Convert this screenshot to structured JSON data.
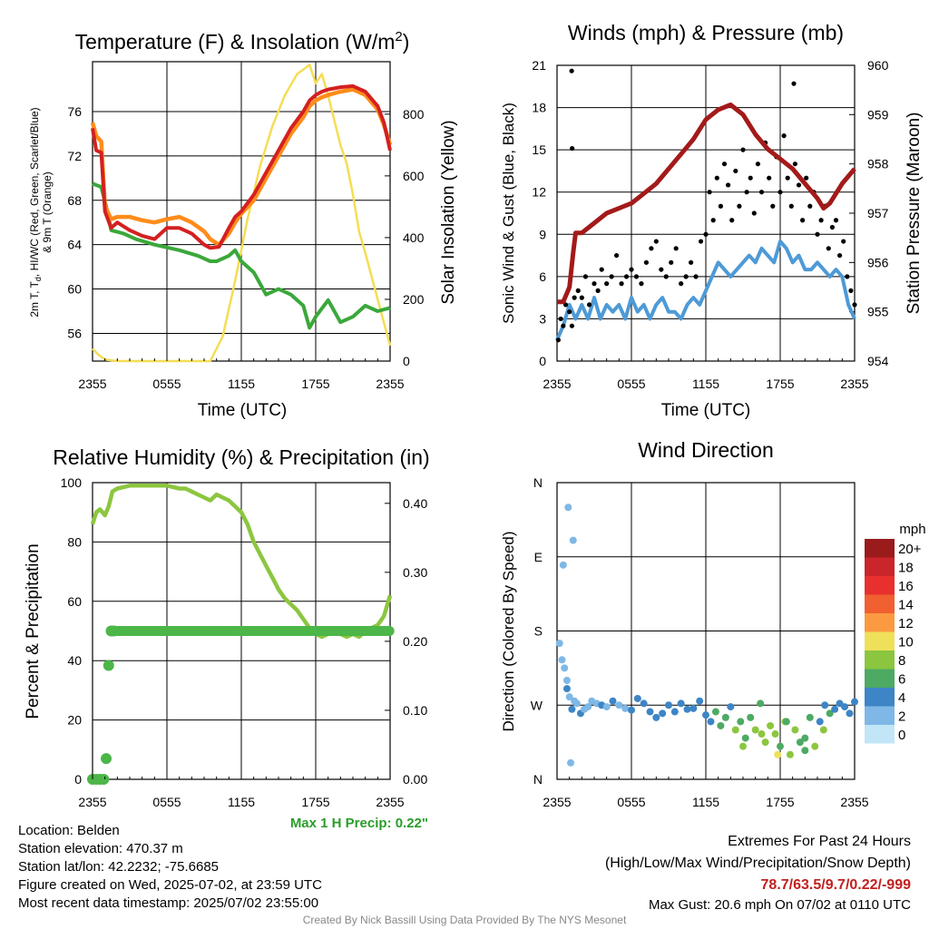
{
  "colors": {
    "temp": "#d42020",
    "dew": "#3aa83a",
    "heat": "#ff3a1a",
    "t9m": "#ff8c1a",
    "solar": "#f5dd55",
    "wind": "#4e9ad6",
    "gust": "#000000",
    "pressure": "#a31a1a",
    "rh": "#8cc63f",
    "precip": "#4cb648",
    "precip_label": "#2a9d2a",
    "extremes": "#c22020",
    "footer": "#888888"
  },
  "x_ticks": [
    "2355",
    "0555",
    "1155",
    "1755",
    "2355"
  ],
  "x_label": "Time (UTC)",
  "chart_data": [
    {
      "type": "line",
      "title_main": "Temperature (F) & Insolation (W/m",
      "title_sup": "2",
      "title_end": ")",
      "xlabel": "Time (UTC)",
      "ylabel_line1": "2m T, T",
      "ylabel_sub": "d",
      "ylabel_rest": ", HI/WC (Red, Green, Scarlet/Blue)",
      "ylabel_line2": "& 9m T (Orange)",
      "ylabel_right": "Solar Insolation (Yellow)",
      "ylim": [
        53.5,
        80.5
      ],
      "y2lim": [
        0,
        970
      ],
      "yticks": [
        56,
        60,
        64,
        68,
        72,
        76
      ],
      "y2ticks": [
        0,
        200,
        400,
        600,
        800
      ],
      "x_hours": [
        0,
        6,
        12,
        18,
        24
      ],
      "series": [
        {
          "key": "temp",
          "x": [
            0,
            0.3,
            0.7,
            1.0,
            1.5,
            2,
            3,
            4,
            5,
            6,
            7,
            8,
            9,
            9.5,
            10.2,
            11,
            11.5,
            12,
            13,
            14,
            15,
            16,
            17,
            17.5,
            18,
            18.5,
            19,
            20,
            21,
            22,
            23,
            23.5,
            24
          ],
          "y": [
            74.5,
            72.5,
            72.3,
            67,
            65.5,
            66,
            65.3,
            64.8,
            64.5,
            65.5,
            65.5,
            65,
            64,
            63.7,
            63.8,
            65.5,
            66.5,
            67,
            68.5,
            70.5,
            72.5,
            74.5,
            76,
            77,
            77.5,
            77.8,
            78,
            78.2,
            78.3,
            77.8,
            76.5,
            75,
            72.5
          ]
        },
        {
          "key": "t9m",
          "x": [
            0,
            0.3,
            0.7,
            1.0,
            1.5,
            2,
            3,
            4,
            5,
            6,
            7,
            8,
            9,
            9.5,
            10.2,
            11,
            11.5,
            12,
            13,
            14,
            15,
            16,
            17,
            17.5,
            18,
            18.5,
            19,
            20,
            21,
            22,
            23,
            23.5,
            24
          ],
          "y": [
            75,
            73.8,
            73.3,
            67.5,
            66.3,
            66.5,
            66.5,
            66.2,
            66,
            66.3,
            66.5,
            66,
            65.2,
            64.5,
            64,
            65,
            66,
            66.8,
            68,
            70,
            72,
            74,
            75.5,
            76.5,
            77,
            77.3,
            77.5,
            77.8,
            78,
            77.5,
            76.2,
            74.8,
            73
          ]
        },
        {
          "key": "dew",
          "x": [
            0,
            0.7,
            1.2,
            1.5,
            2.5,
            3.5,
            5,
            7,
            8.5,
            9.5,
            10,
            11,
            11.5,
            12,
            13,
            13.5,
            14,
            15,
            16,
            17,
            17.5,
            18,
            19,
            19.5,
            20,
            21,
            22,
            23,
            24
          ],
          "y": [
            69.5,
            69.2,
            67,
            65.3,
            65,
            64.5,
            64,
            63.5,
            63,
            62.5,
            62.5,
            63,
            63.5,
            62.5,
            61.5,
            60.5,
            59.5,
            60,
            59.5,
            58.5,
            56.5,
            57.5,
            59,
            58,
            57,
            57.5,
            58.5,
            58,
            58.3
          ]
        },
        {
          "key": "solar",
          "x": [
            0,
            0.5,
            1,
            2,
            3,
            4,
            5,
            6,
            7,
            8,
            9,
            9.5,
            10.5,
            11.5,
            12.5,
            13.5,
            14.5,
            15.5,
            16.5,
            17.5,
            18,
            18.5,
            19,
            20,
            20.5,
            21,
            21.5,
            22,
            23,
            24
          ],
          "y": [
            40,
            20,
            5,
            0,
            0,
            0,
            0,
            0,
            0,
            0,
            0,
            0,
            80,
            260,
            460,
            630,
            760,
            860,
            930,
            960,
            900,
            930,
            860,
            700,
            640,
            540,
            420,
            350,
            200,
            50
          ]
        }
      ]
    },
    {
      "type": "line",
      "title": "Winds (mph) & Pressure (mb)",
      "xlabel": "Time (UTC)",
      "ylabel": "Sonic Wind & Gust (Blue, Black)",
      "ylabel_right": "Station Pressure (Maroon)",
      "ylim": [
        0,
        21
      ],
      "y2lim": [
        954,
        960
      ],
      "yticks": [
        0,
        3,
        6,
        9,
        12,
        15,
        18,
        21
      ],
      "y2ticks": [
        954,
        955,
        956,
        957,
        958,
        959,
        960
      ],
      "x_hours": [
        0,
        6,
        12,
        18,
        24
      ],
      "series": [
        {
          "key": "pressure",
          "x": [
            0,
            0.5,
            1,
            1.3,
            1.5,
            2,
            3,
            4,
            5,
            6,
            7,
            8,
            9,
            10,
            11,
            12,
            13,
            14,
            15,
            16,
            17,
            18,
            19,
            20,
            21,
            21.5,
            22,
            23,
            24
          ],
          "y": [
            955.2,
            955.2,
            955.5,
            956.2,
            956.6,
            956.6,
            956.8,
            957.0,
            957.1,
            957.2,
            957.4,
            957.6,
            957.9,
            958.2,
            958.5,
            958.9,
            959.1,
            959.2,
            959.0,
            958.6,
            958.3,
            958.1,
            957.9,
            957.6,
            957.3,
            957.1,
            957.2,
            957.6,
            957.9
          ]
        },
        {
          "key": "wind",
          "x": [
            0,
            0.5,
            1,
            1.5,
            2,
            2.5,
            3,
            3.5,
            4,
            4.5,
            5,
            5.5,
            6,
            6.5,
            7,
            7.5,
            8,
            8.5,
            9,
            9.5,
            10,
            10.5,
            11,
            11.5,
            12,
            12.5,
            13,
            13.5,
            14,
            14.5,
            15,
            15.5,
            16,
            16.5,
            17,
            17.5,
            18,
            18.5,
            19,
            19.5,
            20,
            20.5,
            21,
            21.5,
            22,
            22.5,
            23,
            23.5,
            24
          ],
          "y": [
            1.5,
            2.5,
            4,
            3,
            4,
            3,
            4.5,
            3,
            4,
            3.5,
            4,
            3,
            4.5,
            3.5,
            4,
            3,
            4,
            4.5,
            3.5,
            3.5,
            3,
            4,
            4.5,
            4,
            5,
            6,
            7,
            6.5,
            6,
            6.5,
            7,
            7.5,
            7,
            8,
            7.5,
            7,
            8.5,
            8,
            7,
            7.5,
            6.5,
            6.5,
            7,
            6.5,
            6,
            6.5,
            6,
            4,
            3
          ]
        }
      ],
      "gust_points": {
        "x": [
          0.1,
          0.3,
          0.5,
          0.7,
          1.0,
          1.2,
          1.4,
          1.7,
          2.0,
          2.3,
          2.6,
          3.0,
          3.3,
          3.6,
          4.0,
          4.4,
          4.8,
          5.2,
          5.6,
          6.0,
          6.4,
          6.8,
          7.2,
          7.6,
          8.0,
          8.4,
          8.8,
          9.2,
          9.6,
          10.0,
          10.4,
          10.8,
          11.2,
          11.6,
          12.0,
          12.3,
          12.6,
          12.9,
          13.2,
          13.5,
          13.8,
          14.1,
          14.4,
          14.7,
          15.0,
          15.3,
          15.6,
          15.9,
          16.2,
          16.5,
          16.8,
          17.1,
          17.4,
          17.7,
          18.0,
          18.3,
          18.6,
          18.9,
          19.2,
          19.5,
          19.8,
          20.1,
          20.4,
          20.7,
          21.0,
          21.3,
          21.6,
          21.9,
          22.2,
          22.5,
          22.8,
          23.1,
          23.4,
          23.7,
          24.0,
          1.18,
          1.22,
          19.1
        ],
        "y": [
          1.5,
          3,
          2.5,
          4,
          3.5,
          2.5,
          4.5,
          5,
          4.5,
          6,
          4,
          5.5,
          5,
          6.5,
          5.5,
          6,
          7.5,
          5.5,
          6,
          6.5,
          6,
          5.5,
          7,
          8,
          8.5,
          6.5,
          6,
          7,
          8,
          5.5,
          6,
          7,
          6,
          8.5,
          9,
          12,
          10,
          13,
          11,
          14,
          12.5,
          10,
          13.5,
          11,
          15,
          12,
          13,
          10.5,
          14,
          12,
          15.5,
          13,
          11,
          14.5,
          12,
          16,
          13,
          11,
          14,
          12.5,
          10,
          13,
          11,
          12,
          9,
          10,
          11,
          8,
          9.5,
          10,
          7.5,
          8.5,
          6,
          5,
          4,
          20.6,
          15.1,
          19.7
        ]
      }
    },
    {
      "type": "line",
      "title": "Relative Humidity (%) & Precipitation (in)",
      "ylabel": "Percent & Precipitation",
      "ylim": [
        0,
        100
      ],
      "y2lim": [
        0,
        0.43
      ],
      "yticks": [
        0,
        20,
        40,
        60,
        80,
        100
      ],
      "y2ticks": [
        0.0,
        0.1,
        0.2,
        0.3,
        0.4
      ],
      "y2tick_labels": [
        "0.00",
        "0.10",
        "0.20",
        "0.30",
        "0.40"
      ],
      "x_hours": [
        0,
        6,
        12,
        18,
        24
      ],
      "max_precip_label": "Max 1 H Precip: 0.22\"",
      "series": [
        {
          "key": "rh",
          "x": [
            0,
            0.3,
            0.6,
            1.0,
            1.3,
            1.6,
            2.0,
            2.5,
            3,
            4,
            5,
            6,
            7,
            7.5,
            8,
            8.5,
            9,
            9.5,
            10,
            11,
            12,
            12.5,
            13,
            13.5,
            14,
            14.5,
            15,
            15.5,
            16,
            16.5,
            17,
            17.5,
            18,
            18.5,
            19,
            19.5,
            20,
            20.5,
            21,
            21.5,
            22,
            22.5,
            23,
            23.5,
            24
          ],
          "y": [
            86,
            90,
            91,
            89,
            92,
            97,
            98,
            98.5,
            99,
            99,
            99,
            99,
            98,
            98,
            97,
            96,
            95,
            94,
            96,
            94,
            90,
            86,
            80,
            76,
            72,
            68,
            64,
            61,
            59,
            57,
            54,
            51,
            49,
            48,
            49,
            50,
            49,
            48,
            49,
            48,
            50,
            51,
            52,
            55,
            62
          ]
        },
        {
          "key": "precip_total",
          "x": [
            0,
            0.3,
            0.6,
            0.9,
            1.1,
            1.3,
            1.5,
            1.7,
            2,
            6,
            12,
            18,
            24
          ],
          "y": [
            0,
            0,
            0,
            0,
            0.03,
            0.165,
            0.215,
            0.215,
            0.215,
            0.215,
            0.215,
            0.215,
            0.215
          ]
        }
      ]
    },
    {
      "type": "scatter",
      "title": "Wind Direction",
      "ylabel": "Direction (Colored By Speed)",
      "yticks": [
        "N",
        "E",
        "S",
        "W",
        "N"
      ],
      "ydegrees": [
        0,
        90,
        180,
        270,
        360
      ],
      "x_hours": [
        0,
        6,
        12,
        18,
        24
      ],
      "legend_title": "mph",
      "legend_labels": [
        "20+",
        "18",
        "16",
        "14",
        "12",
        "10",
        "8",
        "6",
        "4",
        "2",
        "0"
      ],
      "legend_colors": [
        "#9a1b1b",
        "#c9252b",
        "#e8302e",
        "#f06030",
        "#fb9a40",
        "#efe05a",
        "#8cc63f",
        "#4daa63",
        "#3d85c6",
        "#7fb8e6",
        "#c2e6f7"
      ],
      "points": {
        "x": [
          0.2,
          0.4,
          0.6,
          0.8,
          1.0,
          1.2,
          1.4,
          1.6,
          1.9,
          2.2,
          2.5,
          2.8,
          3.2,
          3.6,
          4.0,
          4.5,
          5.0,
          5.5,
          6.0,
          6.5,
          7.0,
          7.5,
          8.0,
          8.5,
          9.0,
          9.5,
          10.0,
          10.5,
          11.0,
          11.5,
          12.0,
          12.4,
          12.8,
          13.2,
          13.6,
          14.0,
          14.4,
          14.8,
          15.2,
          15.6,
          16.0,
          16.4,
          16.8,
          17.2,
          17.6,
          18.0,
          18.4,
          18.8,
          19.2,
          19.6,
          20.0,
          20.4,
          20.8,
          21.2,
          21.6,
          22.0,
          22.4,
          22.8,
          23.2,
          23.6,
          24.0,
          0.5,
          0.8,
          1.1,
          0.9,
          1.3,
          15.0,
          16.5,
          17.8,
          18.5,
          20.0,
          21.5
        ],
        "y": [
          195,
          215,
          225,
          250,
          260,
          275,
          265,
          268,
          280,
          275,
          272,
          265,
          268,
          270,
          272,
          265,
          270,
          274,
          276,
          262,
          268,
          278,
          285,
          280,
          270,
          278,
          268,
          275,
          274,
          265,
          282,
          290,
          278,
          295,
          285,
          272,
          300,
          290,
          310,
          285,
          300,
          268,
          315,
          295,
          305,
          320,
          290,
          330,
          300,
          315,
          325,
          285,
          320,
          290,
          270,
          280,
          275,
          268,
          272,
          280,
          266,
          100,
          240,
          340,
          30,
          70,
          320,
          305,
          330,
          290,
          310,
          300
        ],
        "v": [
          1,
          1,
          2,
          3,
          2,
          3,
          2,
          2,
          3,
          2,
          2,
          2,
          2,
          3,
          2,
          3,
          2,
          2,
          3,
          3,
          3,
          3,
          3,
          4,
          3,
          3,
          4,
          4,
          3,
          3,
          4,
          4,
          5,
          5,
          6,
          4,
          7,
          5,
          6,
          5,
          7,
          6,
          7,
          8,
          7,
          6,
          7,
          8,
          7,
          6,
          5,
          6,
          7,
          4,
          4,
          5,
          4,
          3,
          4,
          3,
          3,
          1,
          1,
          2,
          1,
          2,
          7,
          8,
          9,
          6,
          5,
          7
        ]
      }
    }
  ],
  "info": {
    "location": "Location: Belden",
    "elevation": "Station elevation: 470.37 m",
    "latlon": "Station lat/lon: 42.2232; -75.6685",
    "created": "Figure created on Wed, 2025-07-02, at 23:59 UTC",
    "recent": "Most recent data timestamp: 2025/07/02 23:55:00"
  },
  "extremes": {
    "title": "Extremes For Past 24 Hours",
    "subtitle": "(High/Low/Max Wind/Precipitation/Snow Depth)",
    "values": "78.7/63.5/9.7/0.22/-999",
    "gust": "Max Gust: 20.6 mph On 07/02 at 0110 UTC"
  },
  "footer": "Created By Nick Bassill Using Data Provided By The NYS Mesonet"
}
